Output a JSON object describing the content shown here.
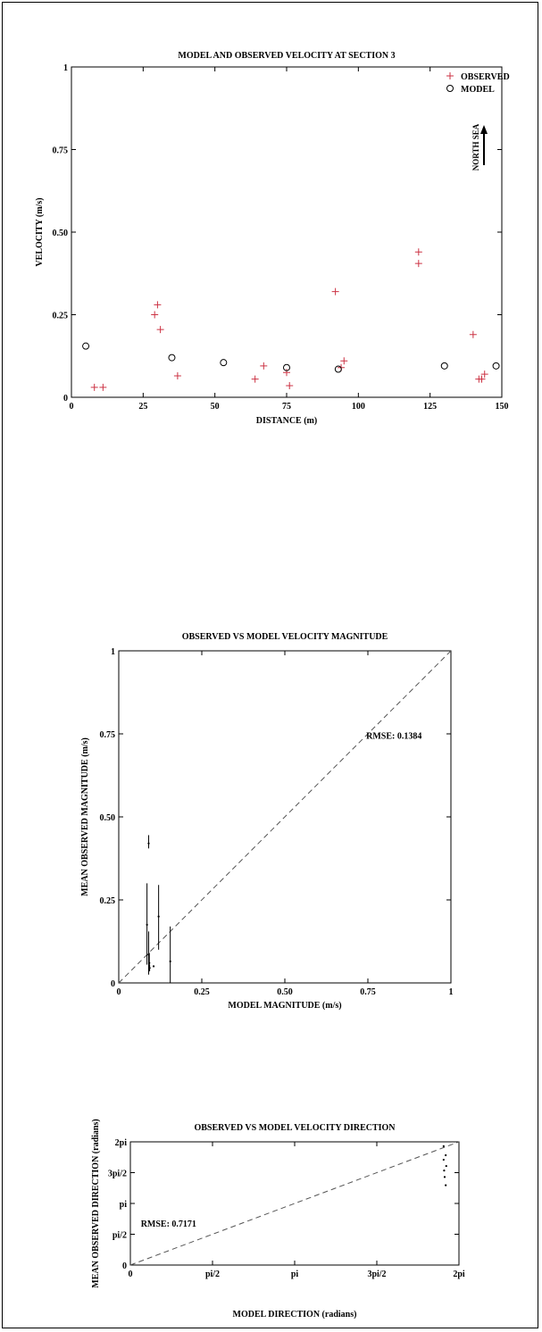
{
  "chart_data": [
    {
      "type": "scatter",
      "title": "MODEL AND OBSERVED VELOCITY AT SECTION 3",
      "xlabel": "DISTANCE (m)",
      "ylabel": "VELOCITY (m/s)",
      "xlim": [
        0,
        150
      ],
      "ylim": [
        0,
        1
      ],
      "xticks": [
        0,
        25,
        50,
        75,
        100,
        125,
        150
      ],
      "xtick_labels": [
        "0",
        "25",
        "50",
        "75",
        "100",
        "125",
        "150"
      ],
      "yticks": [
        0,
        0.25,
        0.5,
        0.75,
        1
      ],
      "ytick_labels": [
        "0",
        "0.25",
        "0.50",
        "0.75",
        "1"
      ],
      "legend": "top-right",
      "annotation": "NORTH SEA",
      "series": [
        {
          "name": "OBSERVED",
          "marker": "plus",
          "color": "#cc3344",
          "points": [
            [
              8,
              0.03
            ],
            [
              11,
              0.03
            ],
            [
              29,
              0.25
            ],
            [
              30,
              0.28
            ],
            [
              31,
              0.205
            ],
            [
              37,
              0.065
            ],
            [
              64,
              0.055
            ],
            [
              67,
              0.095
            ],
            [
              75,
              0.075
            ],
            [
              76,
              0.035
            ],
            [
              92,
              0.32
            ],
            [
              94,
              0.09
            ],
            [
              95,
              0.11
            ],
            [
              121,
              0.44
            ],
            [
              121,
              0.405
            ],
            [
              140,
              0.19
            ],
            [
              142,
              0.055
            ],
            [
              143,
              0.055
            ],
            [
              144,
              0.07
            ]
          ]
        },
        {
          "name": "MODEL",
          "marker": "circle",
          "color": "#000000",
          "points": [
            [
              5,
              0.155
            ],
            [
              35,
              0.12
            ],
            [
              53,
              0.105
            ],
            [
              75,
              0.09
            ],
            [
              93,
              0.085
            ],
            [
              130,
              0.095
            ],
            [
              148,
              0.095
            ]
          ]
        }
      ]
    },
    {
      "type": "scatter",
      "title": "OBSERVED VS MODEL VELOCITY MAGNITUDE",
      "xlabel": "MODEL MAGNITUDE (m/s)",
      "ylabel": "MEAN OBSERVED MAGNITUDE (m/s)",
      "xlim": [
        0,
        1
      ],
      "ylim": [
        0,
        1
      ],
      "xticks": [
        0,
        0.25,
        0.5,
        0.75,
        1
      ],
      "xtick_labels": [
        "0",
        "0.25",
        "0.50",
        "0.75",
        "1"
      ],
      "yticks": [
        0,
        0.25,
        0.5,
        0.75,
        1
      ],
      "ytick_labels": [
        "0",
        "0.25",
        "0.50",
        "0.75",
        "1"
      ],
      "annotation": "RMSE:  0.1384",
      "reference_line": "y = x (dashed)",
      "points": [
        {
          "x": 0.085,
          "y": 0.175,
          "lo": 0.055,
          "hi": 0.3
        },
        {
          "x": 0.09,
          "y": 0.42,
          "lo": 0.405,
          "hi": 0.445
        },
        {
          "x": 0.09,
          "y": 0.085,
          "lo": 0.025,
          "hi": 0.155
        },
        {
          "x": 0.092,
          "y": 0.06,
          "lo": 0.035,
          "hi": 0.09
        },
        {
          "x": 0.093,
          "y": 0.045,
          "lo": 0.035,
          "hi": 0.055
        },
        {
          "x": 0.105,
          "y": 0.05,
          "lo": 0.05,
          "hi": 0.05
        },
        {
          "x": 0.12,
          "y": 0.2,
          "lo": 0.1,
          "hi": 0.295
        },
        {
          "x": 0.155,
          "y": 0.065,
          "lo": 0.0,
          "hi": 0.17
        }
      ]
    },
    {
      "type": "scatter",
      "title": "OBSERVED VS MODEL VELOCITY DIRECTION",
      "xlabel": "MODEL DIRECTION (radians)",
      "ylabel": "MEAN OBSERVED DIRECTION (radians)",
      "xlim": [
        0,
        6.2832
      ],
      "ylim": [
        0,
        6.2832
      ],
      "xticks": [
        0,
        1.5708,
        3.1416,
        4.7124,
        6.2832
      ],
      "xtick_labels": [
        "0",
        "pi/2",
        "pi",
        "3pi/2",
        "2pi"
      ],
      "yticks": [
        0,
        1.5708,
        3.1416,
        4.7124,
        6.2832
      ],
      "ytick_labels": [
        "0",
        "pi/2",
        "pi",
        "3pi/2",
        "2pi"
      ],
      "annotation": "RMSE:  0.7171",
      "reference_line": "y = x (dashed)",
      "points": [
        [
          5.99,
          6.06
        ],
        [
          6.03,
          5.6
        ],
        [
          5.99,
          5.37
        ],
        [
          6.04,
          5.05
        ],
        [
          6.0,
          4.82
        ],
        [
          6.01,
          4.49
        ],
        [
          6.03,
          4.07
        ]
      ]
    }
  ]
}
